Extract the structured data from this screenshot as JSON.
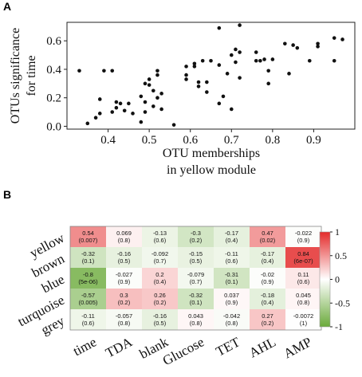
{
  "panels": {
    "a": "A",
    "b": "B"
  },
  "chart_data": [
    {
      "type": "scatter",
      "xlabel_lines": [
        "OTU memberships",
        "in yellow module"
      ],
      "ylabel_lines": [
        "OTUs significance",
        "for time"
      ],
      "xlim": [
        0.3,
        1.0
      ],
      "ylim": [
        -0.02,
        0.73
      ],
      "xticks": [
        0.4,
        0.5,
        0.6,
        0.7,
        0.8,
        0.9
      ],
      "xtick_labels": [
        "0.4",
        "0.5",
        "0.6",
        "0.7",
        "0.8",
        "0.9"
      ],
      "yticks": [
        0.0,
        0.2,
        0.4,
        0.6
      ],
      "ytick_labels": [
        "0.0",
        "0.2",
        "0.4",
        "0.6"
      ],
      "points": [
        [
          0.33,
          0.39
        ],
        [
          0.35,
          0.02
        ],
        [
          0.37,
          0.06
        ],
        [
          0.38,
          0.19
        ],
        [
          0.38,
          0.09
        ],
        [
          0.39,
          0.39
        ],
        [
          0.41,
          0.39
        ],
        [
          0.41,
          0.1
        ],
        [
          0.42,
          0.17
        ],
        [
          0.42,
          0.13
        ],
        [
          0.43,
          0.16
        ],
        [
          0.44,
          0.11
        ],
        [
          0.45,
          0.16
        ],
        [
          0.46,
          0.09
        ],
        [
          0.48,
          0.03
        ],
        [
          0.48,
          0.21
        ],
        [
          0.49,
          0.3
        ],
        [
          0.49,
          0.17
        ],
        [
          0.49,
          0.1
        ],
        [
          0.5,
          0.33
        ],
        [
          0.5,
          0.29
        ],
        [
          0.51,
          0.25
        ],
        [
          0.51,
          0.14
        ],
        [
          0.52,
          0.39
        ],
        [
          0.52,
          0.36
        ],
        [
          0.52,
          0.2
        ],
        [
          0.53,
          0.23
        ],
        [
          0.53,
          0.12
        ],
        [
          0.56,
          0.01
        ],
        [
          0.59,
          0.42
        ],
        [
          0.59,
          0.36
        ],
        [
          0.59,
          0.33
        ],
        [
          0.61,
          0.44
        ],
        [
          0.61,
          0.42
        ],
        [
          0.62,
          0.31
        ],
        [
          0.62,
          0.28
        ],
        [
          0.63,
          0.46
        ],
        [
          0.64,
          0.31
        ],
        [
          0.64,
          0.24
        ],
        [
          0.65,
          0.46
        ],
        [
          0.67,
          0.69
        ],
        [
          0.67,
          0.43
        ],
        [
          0.67,
          0.16
        ],
        [
          0.68,
          0.21
        ],
        [
          0.69,
          0.37
        ],
        [
          0.7,
          0.12
        ],
        [
          0.7,
          0.5
        ],
        [
          0.71,
          0.45
        ],
        [
          0.71,
          0.54
        ],
        [
          0.72,
          0.71
        ],
        [
          0.72,
          0.34
        ],
        [
          0.72,
          0.52
        ],
        [
          0.76,
          0.52
        ],
        [
          0.76,
          0.46
        ],
        [
          0.77,
          0.46
        ],
        [
          0.78,
          0.47
        ],
        [
          0.79,
          0.39
        ],
        [
          0.79,
          0.3
        ],
        [
          0.8,
          0.47
        ],
        [
          0.83,
          0.58
        ],
        [
          0.84,
          0.37
        ],
        [
          0.85,
          0.57
        ],
        [
          0.86,
          0.55
        ],
        [
          0.89,
          0.46
        ],
        [
          0.91,
          0.56
        ],
        [
          0.91,
          0.58
        ],
        [
          0.95,
          0.46
        ],
        [
          0.95,
          0.62
        ],
        [
          0.97,
          0.61
        ]
      ]
    },
    {
      "type": "heatmap",
      "rows": [
        "yellow",
        "brown",
        "blue",
        "turquoise",
        "grey"
      ],
      "columns": [
        "time",
        "TDA",
        "blank",
        "Glucose",
        "TET",
        "AHL",
        "AMP"
      ],
      "values": [
        [
          0.54,
          0.069,
          -0.13,
          -0.3,
          -0.17,
          0.47,
          -0.022
        ],
        [
          -0.32,
          -0.16,
          -0.092,
          -0.15,
          -0.11,
          -0.17,
          0.84
        ],
        [
          -0.8,
          -0.027,
          0.2,
          -0.079,
          -0.31,
          -0.02,
          0.11
        ],
        [
          -0.57,
          0.3,
          0.26,
          -0.32,
          0.037,
          -0.18,
          0.045
        ],
        [
          -0.11,
          -0.057,
          -0.16,
          0.043,
          -0.042,
          0.27,
          -0.0072
        ]
      ],
      "value_labels": [
        [
          "0.54",
          "0.069",
          "-0.13",
          "-0.3",
          "-0.17",
          "0.47",
          "-0.022"
        ],
        [
          "-0.32",
          "-0.16",
          "-0.092",
          "-0.15",
          "-0.11",
          "-0.17",
          "0.84"
        ],
        [
          "-0.8",
          "-0.027",
          "0.2",
          "-0.079",
          "-0.31",
          "-0.02",
          "0.11"
        ],
        [
          "-0.57",
          "0.3",
          "0.26",
          "-0.32",
          "0.037",
          "-0.18",
          "0.045"
        ],
        [
          "-0.11",
          "-0.057",
          "-0.16",
          "0.043",
          "-0.042",
          "0.27",
          "-0.0072"
        ]
      ],
      "p_labels": [
        [
          "(0.007)",
          "(0.8)",
          "(0.6)",
          "(0.2)",
          "(0.4)",
          "(0.02)",
          "(0.9)"
        ],
        [
          "(0.1)",
          "(0.5)",
          "(0.7)",
          "(0.5)",
          "(0.6)",
          "(0.4)",
          "(6e-07)"
        ],
        [
          "(5e-06)",
          "(0.9)",
          "(0.4)",
          "(0.7)",
          "(0.1)",
          "(0.9)",
          "(0.6)"
        ],
        [
          "(0.005)",
          "(0.2)",
          "(0.2)",
          "(0.1)",
          "(0.9)",
          "(0.4)",
          "(0.8)"
        ],
        [
          "(0.6)",
          "(0.8)",
          "(0.5)",
          "(0.8)",
          "(0.8)",
          "(0.2)",
          "(1)"
        ]
      ],
      "colorscale": {
        "negative": "#6aaa3a",
        "zero": "#ffffff",
        "positive": "#e42b2b"
      },
      "colorbar_ticks": [
        1,
        0.5,
        0,
        -0.5,
        -1
      ],
      "colorbar_tick_labels": [
        "1",
        "0.5",
        "0",
        "-0.5",
        "-1"
      ]
    }
  ]
}
